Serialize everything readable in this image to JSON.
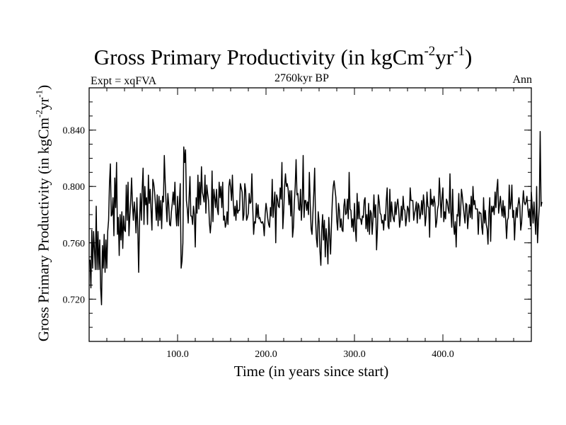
{
  "chart_data": {
    "type": "line",
    "title": "Gross Primary Productivity (in kgCm",
    "title_sup1": "-2",
    "title_mid": "yr",
    "title_sup2": "-1",
    "title_end": ")",
    "left_label": "Expt = xqFVA",
    "center_label": "2760kyr BP",
    "right_label": "Ann",
    "xlabel": "Time (in years since start)",
    "ylabel": "Gross Primary Productivity (in kgCm",
    "ylabel_sup1": "-2",
    "ylabel_mid": "yr",
    "ylabel_sup2": "-1",
    "ylabel_end": ")",
    "xlim": [
      0,
      500
    ],
    "ylim": [
      0.69,
      0.87
    ],
    "xticks": [
      100,
      200,
      300,
      400
    ],
    "xtick_labels": [
      "100.0",
      "200.0",
      "300.0",
      "400.0"
    ],
    "yticks": [
      0.72,
      0.76,
      0.8,
      0.84
    ],
    "ytick_labels": [
      "0.720",
      "0.760",
      "0.800",
      "0.840"
    ],
    "x_minor_step": 20,
    "y_minor_step": 0.01,
    "series": [
      {
        "name": "GPP",
        "color": "#000000",
        "x_start": 1,
        "x_step": 1,
        "values": [
          0.748,
          0.728,
          0.769,
          0.742,
          0.768,
          0.755,
          0.741,
          0.786,
          0.741,
          0.768,
          0.741,
          0.762,
          0.728,
          0.716,
          0.758,
          0.742,
          0.766,
          0.739,
          0.762,
          0.742,
          0.768,
          0.776,
          0.802,
          0.816,
          0.779,
          0.78,
          0.792,
          0.765,
          0.806,
          0.785,
          0.817,
          0.766,
          0.778,
          0.751,
          0.78,
          0.762,
          0.782,
          0.756,
          0.779,
          0.769,
          0.768,
          0.801,
          0.776,
          0.803,
          0.765,
          0.779,
          0.79,
          0.806,
          0.787,
          0.776,
          0.789,
          0.781,
          0.767,
          0.792,
          0.77,
          0.739,
          0.776,
          0.795,
          0.776,
          0.798,
          0.813,
          0.773,
          0.8,
          0.787,
          0.792,
          0.773,
          0.808,
          0.788,
          0.798,
          0.783,
          0.769,
          0.805,
          0.802,
          0.796,
          0.787,
          0.776,
          0.794,
          0.772,
          0.793,
          0.776,
          0.79,
          0.77,
          0.793,
          0.789,
          0.822,
          0.803,
          0.788,
          0.775,
          0.795,
          0.787,
          0.773,
          0.772,
          0.782,
          0.788,
          0.796,
          0.787,
          0.803,
          0.781,
          0.772,
          0.793,
          0.772,
          0.787,
          0.802,
          0.742,
          0.747,
          0.76,
          0.828,
          0.817,
          0.826,
          0.79,
          0.784,
          0.774,
          0.792,
          0.807,
          0.779,
          0.779,
          0.773,
          0.786,
          0.78,
          0.757,
          0.792,
          0.781,
          0.808,
          0.784,
          0.803,
          0.787,
          0.814,
          0.796,
          0.793,
          0.789,
          0.808,
          0.781,
          0.801,
          0.795,
          0.79,
          0.774,
          0.767,
          0.776,
          0.811,
          0.775,
          0.798,
          0.792,
          0.785,
          0.798,
          0.784,
          0.78,
          0.803,
          0.792,
          0.8,
          0.785,
          0.803,
          0.776,
          0.779,
          0.771,
          0.774,
          0.782,
          0.773,
          0.8,
          0.805,
          0.799,
          0.79,
          0.808,
          0.788,
          0.779,
          0.786,
          0.776,
          0.79,
          0.781,
          0.783,
          0.783,
          0.802,
          0.799,
          0.796,
          0.776,
          0.78,
          0.802,
          0.797,
          0.776,
          0.778,
          0.781,
          0.795,
          0.788,
          0.789,
          0.809,
          0.785,
          0.766,
          0.775,
          0.774,
          0.788,
          0.778,
          0.787,
          0.777,
          0.778,
          0.775,
          0.774,
          0.775,
          0.773,
          0.765,
          0.78,
          0.788,
          0.783,
          0.777,
          0.773,
          0.771,
          0.785,
          0.779,
          0.805,
          0.778,
          0.788,
          0.796,
          0.76,
          0.794,
          0.791,
          0.786,
          0.785,
          0.799,
          0.791,
          0.817,
          0.77,
          0.782,
          0.8,
          0.809,
          0.8,
          0.802,
          0.798,
          0.787,
          0.797,
          0.779,
          0.797,
          0.764,
          0.771,
          0.788,
          0.8,
          0.819,
          0.794,
          0.795,
          0.784,
          0.783,
          0.798,
          0.776,
          0.789,
          0.822,
          0.778,
          0.79,
          0.79,
          0.783,
          0.789,
          0.78,
          0.81,
          0.788,
          0.77,
          0.766,
          0.781,
          0.795,
          0.813,
          0.777,
          0.763,
          0.757,
          0.782,
          0.775,
          0.754,
          0.744,
          0.769,
          0.78,
          0.762,
          0.776,
          0.75,
          0.77,
          0.761,
          0.745,
          0.778,
          0.764,
          0.752,
          0.773,
          0.79,
          0.8,
          0.804,
          0.798,
          0.792,
          0.776,
          0.769,
          0.788,
          0.783,
          0.771,
          0.777,
          0.769,
          0.768,
          0.786,
          0.791,
          0.78,
          0.781,
          0.791,
          0.777,
          0.81,
          0.784,
          0.783,
          0.771,
          0.777,
          0.768,
          0.788,
          0.77,
          0.761,
          0.795,
          0.777,
          0.789,
          0.777,
          0.777,
          0.773,
          0.779,
          0.778,
          0.79,
          0.792,
          0.77,
          0.78,
          0.768,
          0.788,
          0.766,
          0.783,
          0.781,
          0.766,
          0.777,
          0.794,
          0.778,
          0.787,
          0.755,
          0.77,
          0.794,
          0.789,
          0.781,
          0.78,
          0.774,
          0.776,
          0.769,
          0.78,
          0.776,
          0.79,
          0.799,
          0.772,
          0.77,
          0.798,
          0.775,
          0.789,
          0.781,
          0.777,
          0.775,
          0.789,
          0.78,
          0.787,
          0.791,
          0.784,
          0.771,
          0.776,
          0.786,
          0.776,
          0.793,
          0.784,
          0.783,
          0.772,
          0.778,
          0.786,
          0.784,
          0.775,
          0.799,
          0.79,
          0.79,
          0.79,
          0.776,
          0.781,
          0.784,
          0.789,
          0.774,
          0.788,
          0.786,
          0.777,
          0.781,
          0.79,
          0.78,
          0.794,
          0.787,
          0.772,
          0.779,
          0.796,
          0.786,
          0.785,
          0.764,
          0.798,
          0.787,
          0.791,
          0.786,
          0.793,
          0.788,
          0.771,
          0.775,
          0.784,
          0.787,
          0.806,
          0.793,
          0.778,
          0.792,
          0.799,
          0.775,
          0.782,
          0.777,
          0.791,
          0.789,
          0.784,
          0.781,
          0.809,
          0.782,
          0.771,
          0.798,
          0.774,
          0.766,
          0.775,
          0.757,
          0.78,
          0.779,
          0.795,
          0.772,
          0.782,
          0.798,
          0.793,
          0.786,
          0.78,
          0.774,
          0.788,
          0.787,
          0.77,
          0.779,
          0.787,
          0.778,
          0.793,
          0.777,
          0.8,
          0.787,
          0.79,
          0.784,
          0.784,
          0.784,
          0.766,
          0.782,
          0.781,
          0.781,
          0.771,
          0.766,
          0.792,
          0.774,
          0.783,
          0.773,
          0.77,
          0.759,
          0.781,
          0.792,
          0.761,
          0.786,
          0.782,
          0.786,
          0.78,
          0.796,
          0.785,
          0.798,
          0.805,
          0.781,
          0.787,
          0.793,
          0.785,
          0.779,
          0.79,
          0.778,
          0.786,
          0.776,
          0.763,
          0.776,
          0.778,
          0.801,
          0.784,
          0.788,
          0.801,
          0.778,
          0.783,
          0.762,
          0.777,
          0.785,
          0.778,
          0.787,
          0.792,
          0.786,
          0.769,
          0.774,
          0.787,
          0.797,
          0.789,
          0.787,
          0.789,
          0.793,
          0.785,
          0.778,
          0.784,
          0.772,
          0.796,
          0.786,
          0.774,
          0.789,
          0.777,
          0.766,
          0.8,
          0.76,
          0.775,
          0.786,
          0.839,
          0.786,
          0.789
        ]
      }
    ]
  }
}
